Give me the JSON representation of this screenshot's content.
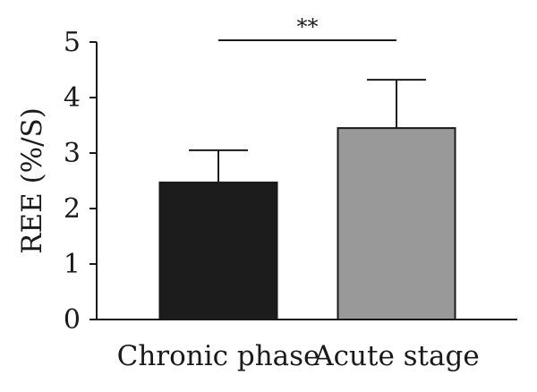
{
  "chart_data": {
    "type": "bar",
    "categories": [
      "Chronic phase",
      "Acute stage"
    ],
    "values": [
      2.47,
      3.45
    ],
    "error_upper": [
      3.05,
      4.32
    ],
    "bar_colors": [
      "#1c1c1c",
      "#999999"
    ],
    "ylabel": "REE (%/S)",
    "xlabel": "",
    "title": "",
    "ylim": [
      0,
      5
    ],
    "yticks": [
      "0",
      "1",
      "2",
      "3",
      "4",
      "5"
    ],
    "grid": false,
    "significance": {
      "between": [
        "Chronic phase",
        "Acute stage"
      ],
      "label": "**"
    }
  }
}
